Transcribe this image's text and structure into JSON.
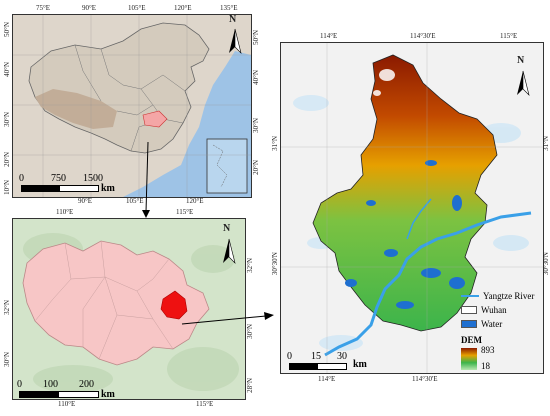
{
  "china_map": {
    "lon_labels": [
      "75°E",
      "90°E",
      "105°E",
      "120°E",
      "135°E"
    ],
    "lon_labels_bottom": [
      "90°E",
      "105°E",
      "120°E"
    ],
    "lat_labels": [
      "50°N",
      "40°N",
      "30°N",
      "20°N",
      "10°N"
    ],
    "lat_labels_right": [
      "50°N",
      "40°N",
      "30°N",
      "20°N"
    ],
    "north": "N",
    "scale": [
      "0",
      "750",
      "1500"
    ],
    "scale_unit": "km",
    "colors": {
      "land": "#d9cfc4",
      "highland": "#c9b6a4",
      "ocean": "#9ec3e6",
      "hubei": "#f4a6a6"
    }
  },
  "hubei_map": {
    "lon_labels": [
      "110°E",
      "115°E"
    ],
    "lon_labels_bottom": [
      "110°E",
      "115°E"
    ],
    "lat_labels": [
      "32°N",
      "30°N"
    ],
    "lat_labels_right": [
      "32°N",
      "30°N",
      "28°N"
    ],
    "north": "N",
    "scale": [
      "0",
      "100",
      "200"
    ],
    "scale_unit": "km",
    "colors": {
      "bg": "#cfe3c7",
      "province": "#f7c6c6",
      "wuhan": "#ee1111"
    }
  },
  "wuhan_map": {
    "lon_labels": [
      "114°E",
      "114°30'E",
      "115°E"
    ],
    "lon_labels_bottom": [
      "114°E",
      "114°30'E"
    ],
    "lat_labels": [
      "31°N",
      "30°30'N"
    ],
    "lat_labels_right": [
      "31°N",
      "30°30'N"
    ],
    "north": "N",
    "scale": [
      "0",
      "15",
      "30"
    ],
    "scale_unit": "km",
    "legend": {
      "river": "Yangtze River",
      "wuhan": "Wuhan",
      "water": "Water",
      "dem_title": "DEM",
      "dem_max": "893",
      "dem_min": "18"
    },
    "colors": {
      "river": "#3aa0e8",
      "water": "#1e6fd0",
      "high": "#8b1a00",
      "mid": "#e6a000",
      "low": "#3cb44b"
    }
  }
}
